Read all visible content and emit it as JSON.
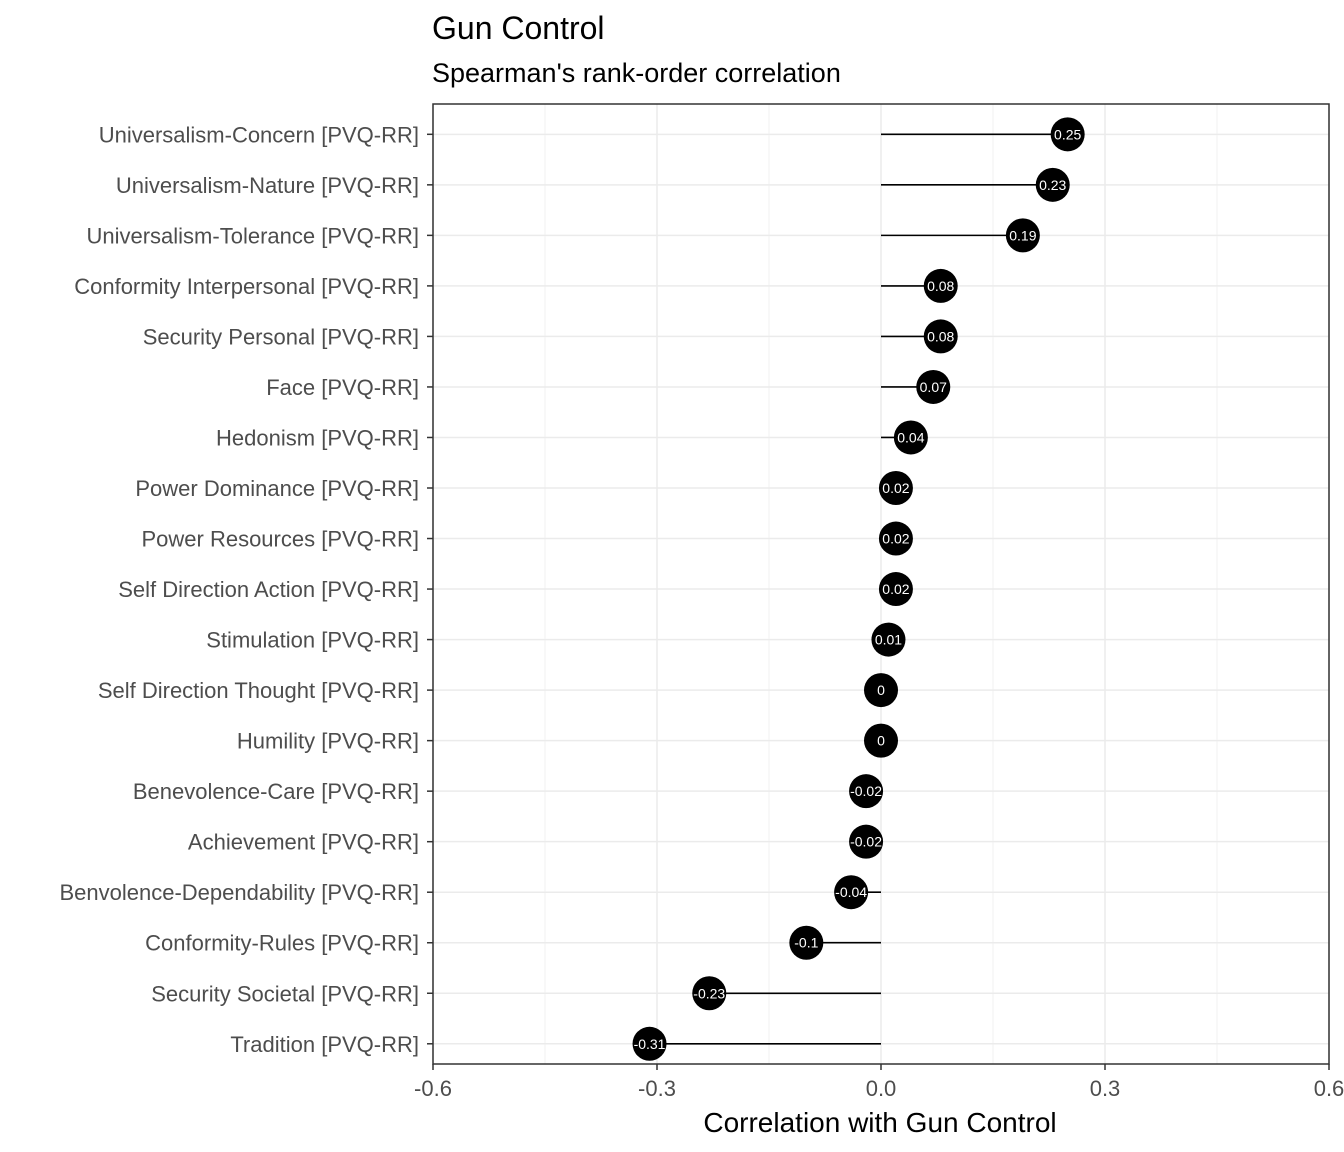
{
  "chart_data": {
    "type": "lollipop",
    "title": "Gun Control",
    "subtitle": "Spearman's rank-order correlation",
    "xlabel": "Correlation with Gun Control",
    "xlim": [
      -0.6,
      0.6
    ],
    "xticks": [
      -0.6,
      -0.3,
      0.0,
      0.3,
      0.6
    ],
    "xtick_labels": [
      "-0.6",
      "-0.3",
      "0.0",
      "0.3",
      "0.6"
    ],
    "grid": true,
    "categories": [
      "Universalism-Concern [PVQ-RR]",
      "Universalism-Nature [PVQ-RR]",
      "Universalism-Tolerance [PVQ-RR]",
      "Conformity Interpersonal [PVQ-RR]",
      "Security Personal [PVQ-RR]",
      "Face [PVQ-RR]",
      "Hedonism [PVQ-RR]",
      "Power Dominance [PVQ-RR]",
      "Power Resources [PVQ-RR]",
      "Self Direction Action [PVQ-RR]",
      "Stimulation [PVQ-RR]",
      "Self Direction Thought [PVQ-RR]",
      "Humility [PVQ-RR]",
      "Benevolence-Care [PVQ-RR]",
      "Achievement [PVQ-RR]",
      "Benvolence-Dependability [PVQ-RR]",
      "Conformity-Rules [PVQ-RR]",
      "Security Societal [PVQ-RR]",
      "Tradition [PVQ-RR]"
    ],
    "values": [
      0.25,
      0.23,
      0.19,
      0.08,
      0.08,
      0.07,
      0.04,
      0.02,
      0.02,
      0.02,
      0.01,
      0,
      0,
      -0.02,
      -0.02,
      -0.04,
      -0.1,
      -0.23,
      -0.31
    ],
    "point_color": "#000000",
    "label_color": "#ffffff"
  }
}
